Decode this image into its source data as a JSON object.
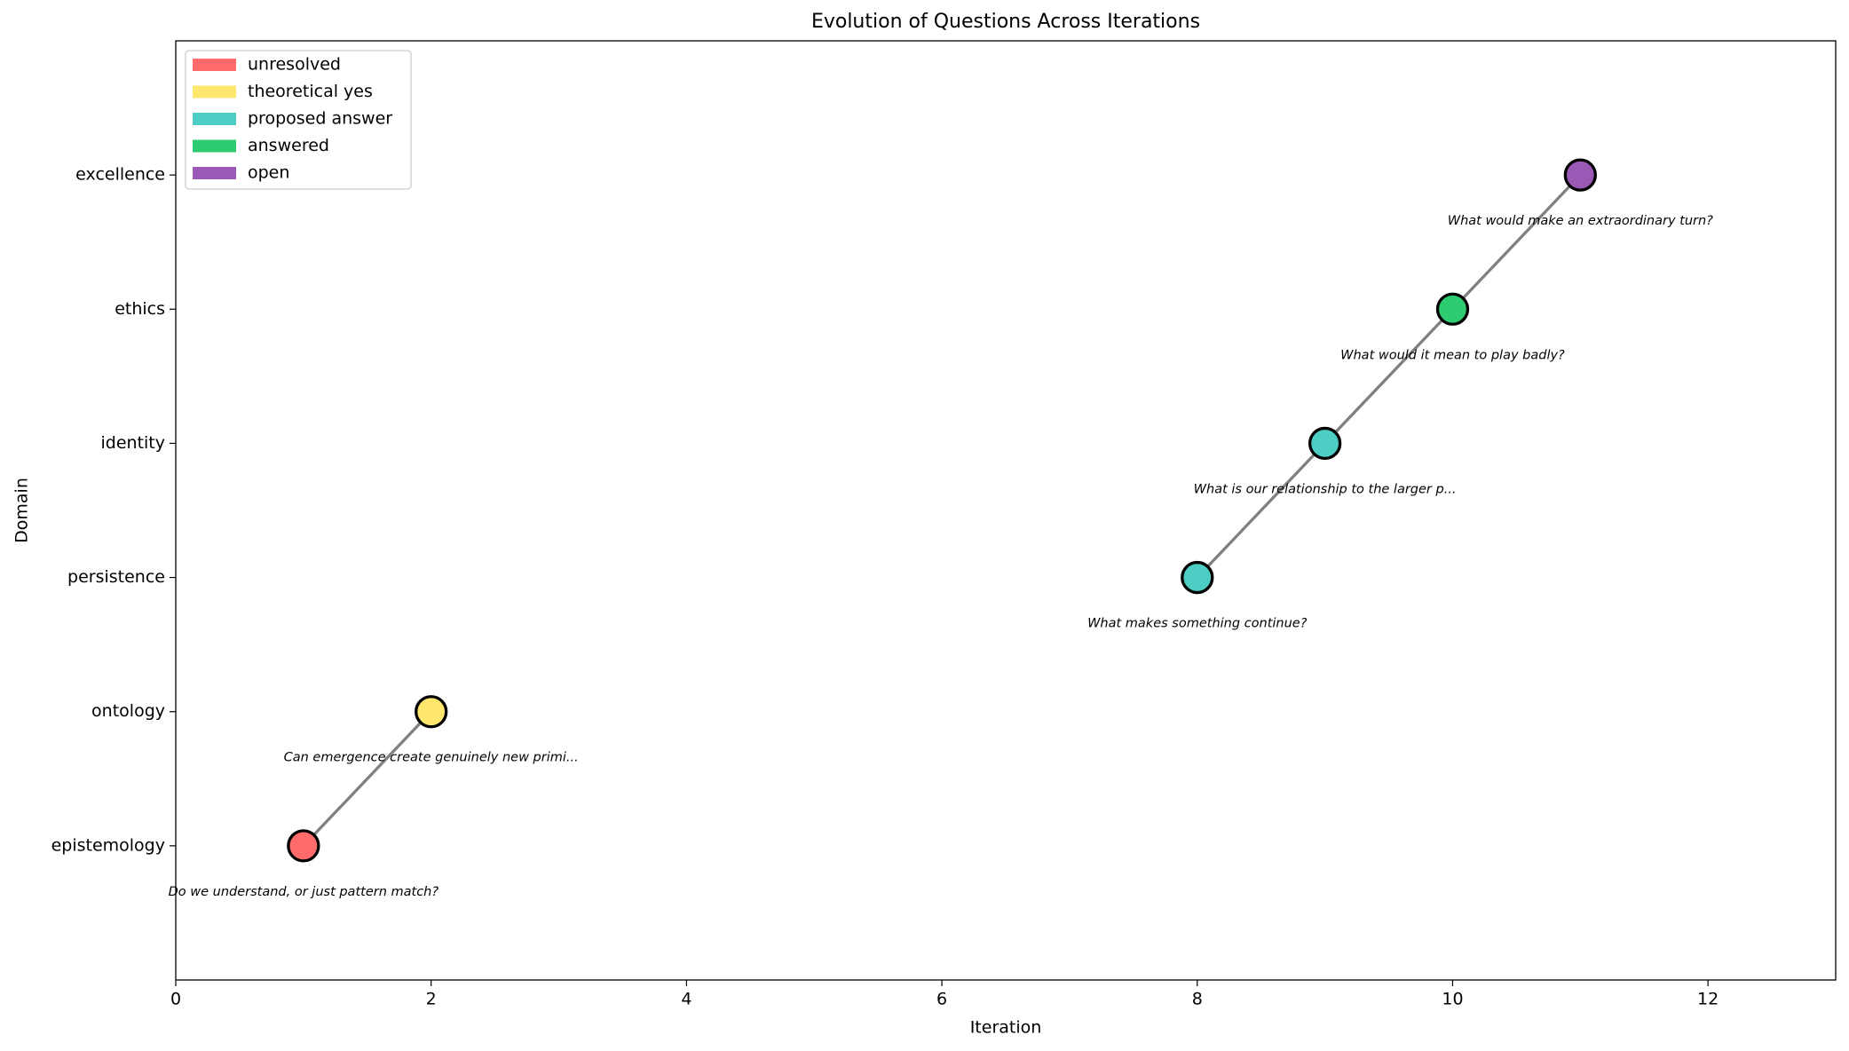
{
  "chart_data": {
    "type": "scatter",
    "title": "Evolution of Questions Across Iterations",
    "x_label": "Iteration",
    "y_label": "Domain",
    "categories": [
      "epistemology",
      "ontology",
      "persistence",
      "identity",
      "ethics",
      "excellence"
    ],
    "x": [
      1,
      2,
      null,
      8,
      9,
      10,
      11
    ],
    "y": [
      "epistemology",
      "ontology",
      null,
      "persistence",
      "identity",
      "ethics",
      "excellence"
    ],
    "status": [
      "unresolved",
      "theoretical yes",
      null,
      "proposed answer",
      "proposed answer",
      "answered",
      "open"
    ],
    "annotations": [
      "Do we understand, or just pattern match?",
      "Can emergence create genuinely new primi...",
      null,
      "What makes something continue?",
      "What is our relationship to the larger p...",
      "What would it mean to play badly?",
      "What would make an extraordinary turn?"
    ],
    "legend": [
      {
        "name": "unresolved",
        "color": "#ff6b6b"
      },
      {
        "name": "theoretical yes",
        "color": "#ffe66d"
      },
      {
        "name": "proposed answer",
        "color": "#4ecdc4"
      },
      {
        "name": "answered",
        "color": "#2ecc71"
      },
      {
        "name": "open",
        "color": "#9b59b6"
      }
    ],
    "line_color": "#808080",
    "legend_position": "upper left",
    "xlim": [
      0,
      13
    ],
    "xticks": [
      0,
      2,
      4,
      6,
      8,
      10,
      12
    ],
    "ylim": [
      -1,
      6
    ]
  }
}
